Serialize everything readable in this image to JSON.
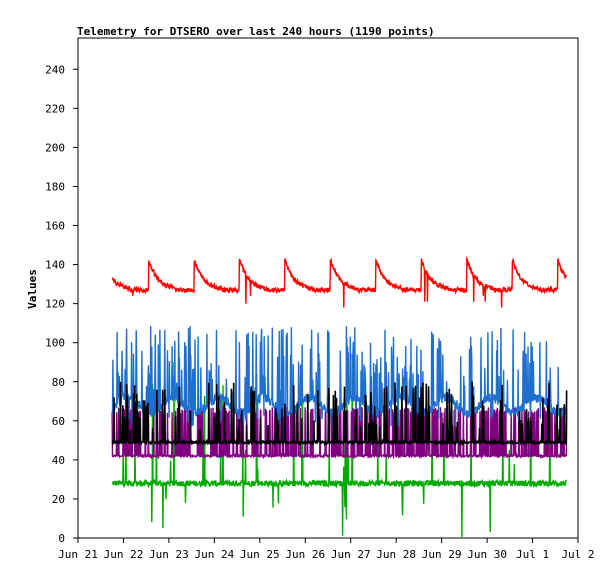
{
  "chart_data": {
    "type": "line",
    "title": "Telemetry for DTSERO over last 240 hours (1190 points)",
    "ylabel": "Values",
    "xlabel": "",
    "ylim": [
      0,
      256
    ],
    "yticks": [
      0,
      20,
      40,
      60,
      80,
      100,
      120,
      140,
      160,
      180,
      200,
      220,
      240
    ],
    "xlim": [
      "Jun 21",
      "Jul 2"
    ],
    "xticks": [
      "Jun 21",
      "Jun 22",
      "Jun 23",
      "Jun 24",
      "Jun 25",
      "Jun 26",
      "Jun 27",
      "Jun 28",
      "Jun 29",
      "Jun 30",
      "Jul 1",
      "Jul 2"
    ],
    "data_range_days": [
      0.75,
      10.75
    ],
    "grid": false,
    "series": [
      {
        "color": "#ff0000",
        "baseline": 127,
        "noise": 1.2,
        "daily_peak": 143,
        "spikes": [],
        "dips": [
          118,
          120,
          121,
          124
        ]
      },
      {
        "color": "#1e6fcf",
        "baseline": 68,
        "noise": 2.5,
        "spike_max": 109,
        "dip_min": 57
      },
      {
        "color": "#800080",
        "baseline": 42,
        "noise": 0.5,
        "spike_level": 67
      },
      {
        "color": "#000000",
        "baseline": 49,
        "noise": 0.6,
        "spike_max": 80
      },
      {
        "color": "#00aa00",
        "baseline": 28,
        "noise": 1.5,
        "spike_max": 105,
        "dip_min": 0
      }
    ]
  }
}
